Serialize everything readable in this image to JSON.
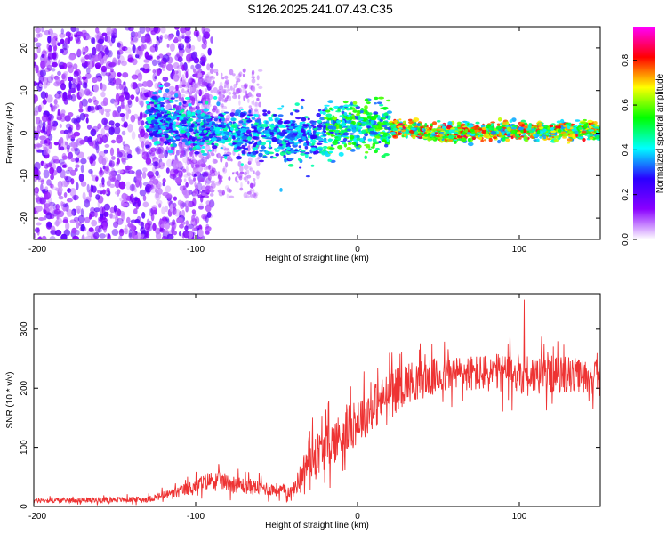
{
  "title": "S126.2025.241.07.43.C35",
  "chart_data": [
    {
      "type": "heatmap",
      "xlabel": "Height of straight line (km)",
      "ylabel": "Frequency (Hz)",
      "xlim": [
        -200,
        150
      ],
      "ylim": [
        -25,
        25
      ],
      "x_ticks": [
        -200,
        -100,
        0,
        100
      ],
      "y_ticks": [
        -20,
        -10,
        0,
        10,
        20
      ],
      "colorbar": {
        "label": "Normalized spectral amplitude",
        "range": [
          0,
          0.95
        ],
        "ticks": [
          "0.0",
          "0.2",
          "0.4",
          "0.6",
          "0.8"
        ],
        "tick_values": [
          0,
          0.2,
          0.4,
          0.6,
          0.8
        ],
        "colormap": [
          "#ffffff",
          "#8a00ff",
          "#2a00ff",
          "#00ffff",
          "#00ff00",
          "#ffff00",
          "#ff0000",
          "#ff00ff"
        ]
      },
      "ridge_center_freq_hz": [
        {
          "x": -120,
          "f": 3
        },
        {
          "x": -100,
          "f": 1
        },
        {
          "x": -60,
          "f": 0
        },
        {
          "x": -30,
          "f": -1
        },
        {
          "x": 0,
          "f": 2
        },
        {
          "x": 50,
          "f": 0
        },
        {
          "x": 100,
          "f": 0.5
        },
        {
          "x": 150,
          "f": 0.5
        }
      ]
    },
    {
      "type": "line",
      "xlabel": "Height of straight line (km)",
      "ylabel": "SNR (10 * v/v)",
      "xlim": [
        -200,
        150
      ],
      "ylim": [
        0,
        360
      ],
      "x_ticks": [
        -200,
        -100,
        0,
        100
      ],
      "y_ticks": [
        0,
        100,
        200,
        300
      ],
      "color": "#ee3333",
      "envelope": [
        {
          "x": -200,
          "mean": 10,
          "spread": 8
        },
        {
          "x": -130,
          "mean": 12,
          "spread": 10
        },
        {
          "x": -110,
          "mean": 25,
          "spread": 20
        },
        {
          "x": -90,
          "mean": 45,
          "spread": 30
        },
        {
          "x": -70,
          "mean": 35,
          "spread": 28
        },
        {
          "x": -40,
          "mean": 25,
          "spread": 20
        },
        {
          "x": -30,
          "mean": 80,
          "spread": 70
        },
        {
          "x": -10,
          "mean": 120,
          "spread": 80
        },
        {
          "x": 10,
          "mean": 170,
          "spread": 80
        },
        {
          "x": 30,
          "mean": 210,
          "spread": 70
        },
        {
          "x": 60,
          "mean": 225,
          "spread": 60
        },
        {
          "x": 100,
          "mean": 225,
          "spread": 70
        },
        {
          "x": 150,
          "mean": 220,
          "spread": 55
        }
      ],
      "peak_value": 350,
      "peak_x": 103
    }
  ]
}
